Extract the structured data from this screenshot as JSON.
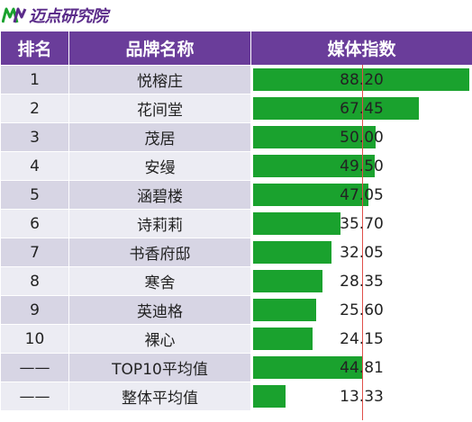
{
  "header": {
    "logo_text": "迈点研究院",
    "accent": "#6a3d9a"
  },
  "chart_data": {
    "type": "table",
    "columns": [
      "排名",
      "品牌名称",
      "媒体指数"
    ],
    "rows": [
      {
        "rank": "1",
        "name": "悦榕庄",
        "value": 88.2,
        "label": "88.20"
      },
      {
        "rank": "2",
        "name": "花间堂",
        "value": 67.45,
        "label": "67.45"
      },
      {
        "rank": "3",
        "name": "茂居",
        "value": 50.0,
        "label": "50.00"
      },
      {
        "rank": "4",
        "name": "安缦",
        "value": 49.5,
        "label": "49.50"
      },
      {
        "rank": "5",
        "name": "涵碧楼",
        "value": 47.05,
        "label": "47.05"
      },
      {
        "rank": "6",
        "name": "诗莉莉",
        "value": 35.7,
        "label": "35.70"
      },
      {
        "rank": "7",
        "name": "书香府邸",
        "value": 32.05,
        "label": "32.05"
      },
      {
        "rank": "8",
        "name": "寒舍",
        "value": 28.35,
        "label": "28.35"
      },
      {
        "rank": "9",
        "name": "英迪格",
        "value": 25.6,
        "label": "25.60"
      },
      {
        "rank": "10",
        "name": "裸心",
        "value": 24.15,
        "label": "24.15"
      },
      {
        "rank": "——",
        "name": "TOP10平均值",
        "value": 44.81,
        "label": "44.81"
      },
      {
        "rank": "——",
        "name": "整体平均值",
        "value": 13.33,
        "label": "13.33"
      }
    ],
    "bar_max": 88.2,
    "reference_line_value": 44.81,
    "bar_color": "#1aa22e",
    "reference_line_color": "#e0504a",
    "row_colors": [
      "#d7d5e4",
      "#ececf3"
    ]
  }
}
